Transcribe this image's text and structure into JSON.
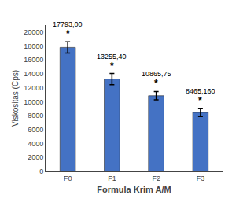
{
  "chart_data": {
    "type": "bar",
    "categories": [
      "F0",
      "F1",
      "F2",
      "F3"
    ],
    "values": [
      17793.0,
      13255.4,
      10865.75,
      8465.16
    ],
    "value_labels": [
      "17793,00",
      "13255,40",
      "10865,75",
      "8465,160"
    ],
    "data_labels": true,
    "errors": [
      800,
      800,
      600,
      600
    ],
    "annotations": [
      "*",
      "*",
      "*",
      "*"
    ],
    "color": "#4472C4",
    "xlabel": "Formula Krim A/M",
    "ylabel": "Viskositas (Cps)",
    "ylim": [
      0,
      21000
    ],
    "yticks": [
      0,
      2000,
      4000,
      6000,
      8000,
      10000,
      12000,
      14000,
      16000,
      18000,
      20000
    ],
    "grid": false
  }
}
